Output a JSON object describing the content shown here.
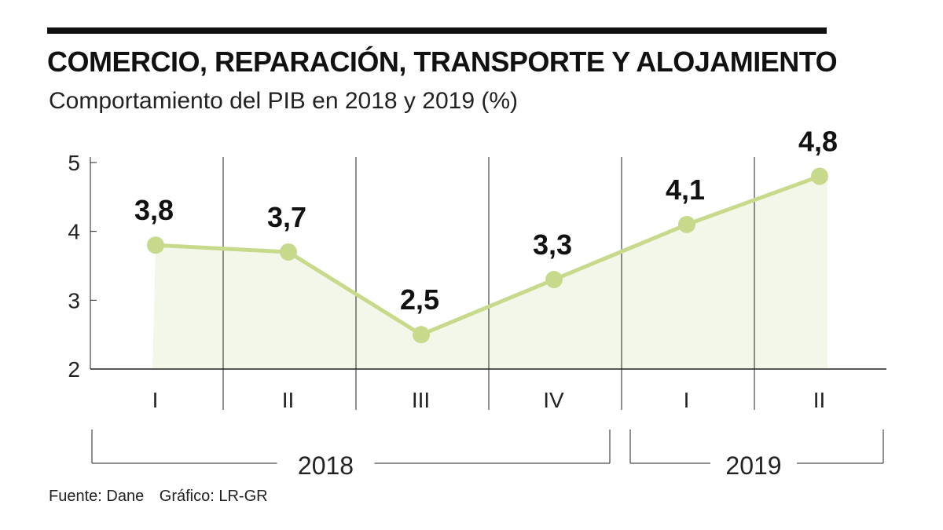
{
  "header": {
    "title": "COMERCIO, REPARACIÓN, TRANSPORTE Y ALOJAMIENTO",
    "subtitle": "Comportamiento del PIB en 2018 y 2019 (%)"
  },
  "footer": {
    "source": "Fuente: Dane",
    "graphic": "Gráfico: LR-GR"
  },
  "colors": {
    "line": "#c7da8c",
    "fill": "#f3f7e9",
    "grid": "#222222",
    "label": "#111111"
  },
  "chart_data": {
    "type": "line",
    "title": "COMERCIO, REPARACIÓN, TRANSPORTE Y ALOJAMIENTO",
    "subtitle": "Comportamiento del PIB en 2018 y 2019 (%)",
    "categories": [
      "I",
      "II",
      "III",
      "IV",
      "I",
      "II"
    ],
    "groups": [
      {
        "label": "2018",
        "span": [
          0,
          3
        ]
      },
      {
        "label": "2019",
        "span": [
          4,
          5
        ]
      }
    ],
    "series": [
      {
        "name": "PIB",
        "values": [
          3.8,
          3.7,
          2.5,
          3.3,
          4.1,
          4.8
        ],
        "labels": [
          "3,8",
          "3,7",
          "2,5",
          "3,3",
          "4,1",
          "4,8"
        ]
      }
    ],
    "ylim": [
      2,
      5
    ],
    "yticks": [
      2,
      3,
      4,
      5
    ],
    "xlabel": "",
    "ylabel": "",
    "grid": "vertical separators",
    "area_fill": true
  }
}
